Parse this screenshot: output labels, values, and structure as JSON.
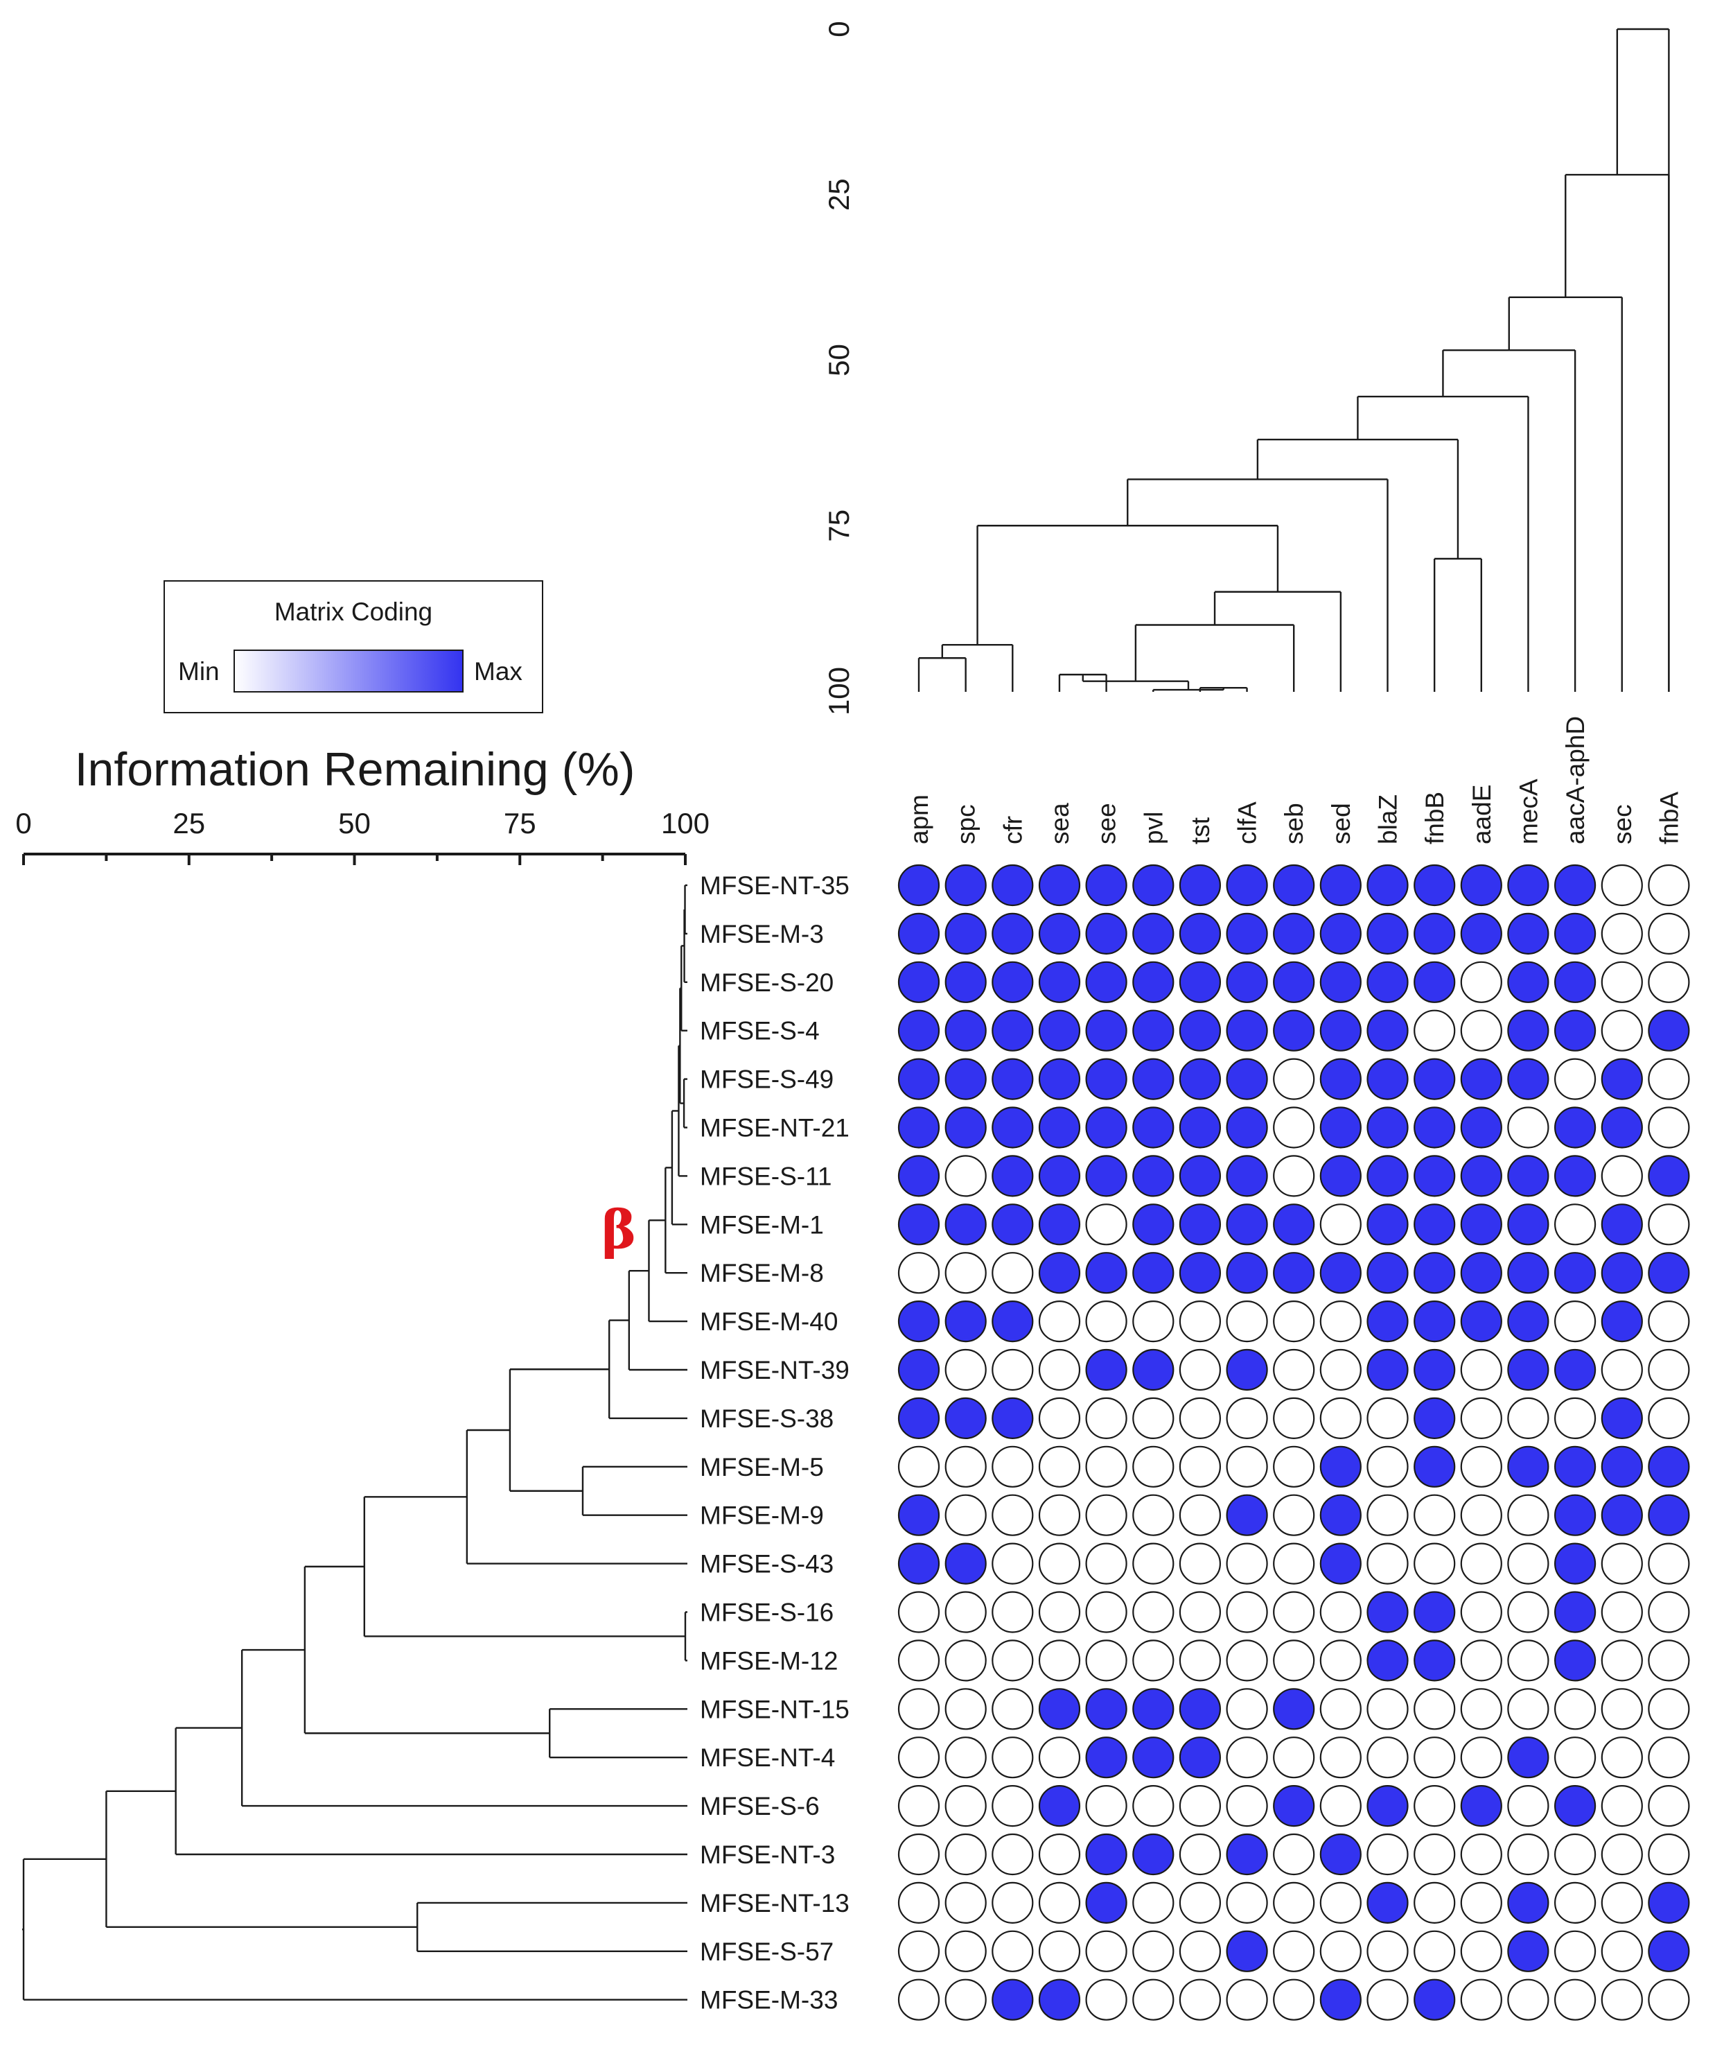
{
  "chart_data": {
    "type": "heatmap",
    "title": "",
    "rows": [
      "MFSE-NT-35",
      "MFSE-M-3",
      "MFSE-S-20",
      "MFSE-S-4",
      "MFSE-S-49",
      "MFSE-NT-21",
      "MFSE-S-11",
      "MFSE-M-1",
      "MFSE-M-8",
      "MFSE-M-40",
      "MFSE-NT-39",
      "MFSE-S-38",
      "MFSE-M-5",
      "MFSE-M-9",
      "MFSE-S-43",
      "MFSE-S-16",
      "MFSE-M-12",
      "MFSE-NT-15",
      "MFSE-NT-4",
      "MFSE-S-6",
      "MFSE-NT-3",
      "MFSE-NT-13",
      "MFSE-S-57",
      "MFSE-M-33"
    ],
    "columns": [
      "apm",
      "spc",
      "cfr",
      "sea",
      "see",
      "pvl",
      "tst",
      "clfA",
      "seb",
      "sed",
      "blaZ",
      "fnbB",
      "aadE",
      "mecA",
      "aacA-aphD",
      "sec",
      "fnbA"
    ],
    "matrix": [
      [
        1,
        1,
        1,
        1,
        1,
        1,
        1,
        1,
        1,
        1,
        1,
        1,
        1,
        1,
        1,
        0,
        0
      ],
      [
        1,
        1,
        1,
        1,
        1,
        1,
        1,
        1,
        1,
        1,
        1,
        1,
        1,
        1,
        1,
        0,
        0
      ],
      [
        1,
        1,
        1,
        1,
        1,
        1,
        1,
        1,
        1,
        1,
        1,
        1,
        0,
        1,
        1,
        0,
        0
      ],
      [
        1,
        1,
        1,
        1,
        1,
        1,
        1,
        1,
        1,
        1,
        1,
        0,
        0,
        1,
        1,
        0,
        1
      ],
      [
        1,
        1,
        1,
        1,
        1,
        1,
        1,
        1,
        0,
        1,
        1,
        1,
        1,
        1,
        0,
        1,
        0
      ],
      [
        1,
        1,
        1,
        1,
        1,
        1,
        1,
        1,
        0,
        1,
        1,
        1,
        1,
        0,
        1,
        1,
        0
      ],
      [
        1,
        0,
        1,
        1,
        1,
        1,
        1,
        1,
        0,
        1,
        1,
        1,
        1,
        1,
        1,
        0,
        1
      ],
      [
        1,
        1,
        1,
        1,
        0,
        1,
        1,
        1,
        1,
        0,
        1,
        1,
        1,
        1,
        0,
        1,
        0
      ],
      [
        0,
        0,
        0,
        1,
        1,
        1,
        1,
        1,
        1,
        1,
        1,
        1,
        1,
        1,
        1,
        1,
        1
      ],
      [
        1,
        1,
        1,
        0,
        0,
        0,
        0,
        0,
        0,
        0,
        1,
        1,
        1,
        1,
        0,
        1,
        0
      ],
      [
        1,
        0,
        0,
        0,
        1,
        1,
        0,
        1,
        0,
        0,
        1,
        1,
        0,
        1,
        1,
        0,
        0
      ],
      [
        1,
        1,
        1,
        0,
        0,
        0,
        0,
        0,
        0,
        0,
        0,
        1,
        0,
        0,
        0,
        1,
        0
      ],
      [
        0,
        0,
        0,
        0,
        0,
        0,
        0,
        0,
        0,
        1,
        0,
        1,
        0,
        1,
        1,
        1,
        1
      ],
      [
        1,
        0,
        0,
        0,
        0,
        0,
        0,
        1,
        0,
        1,
        0,
        0,
        0,
        0,
        1,
        1,
        1
      ],
      [
        1,
        1,
        0,
        0,
        0,
        0,
        0,
        0,
        0,
        1,
        0,
        0,
        0,
        0,
        1,
        0,
        0
      ],
      [
        0,
        0,
        0,
        0,
        0,
        0,
        0,
        0,
        0,
        0,
        1,
        1,
        0,
        0,
        1,
        0,
        0
      ],
      [
        0,
        0,
        0,
        0,
        0,
        0,
        0,
        0,
        0,
        0,
        1,
        1,
        0,
        0,
        1,
        0,
        0
      ],
      [
        0,
        0,
        0,
        1,
        1,
        1,
        1,
        0,
        1,
        0,
        0,
        0,
        0,
        0,
        0,
        0,
        0
      ],
      [
        0,
        0,
        0,
        0,
        1,
        1,
        1,
        0,
        0,
        0,
        0,
        0,
        0,
        1,
        0,
        0,
        0
      ],
      [
        0,
        0,
        0,
        1,
        0,
        0,
        0,
        0,
        1,
        0,
        1,
        0,
        1,
        0,
        1,
        0,
        0
      ],
      [
        0,
        0,
        0,
        0,
        1,
        1,
        0,
        1,
        0,
        1,
        0,
        0,
        0,
        0,
        0,
        0,
        0
      ],
      [
        0,
        0,
        0,
        0,
        1,
        0,
        0,
        0,
        0,
        0,
        1,
        0,
        0,
        1,
        0,
        0,
        1
      ],
      [
        0,
        0,
        0,
        0,
        0,
        0,
        0,
        1,
        0,
        0,
        0,
        0,
        0,
        1,
        0,
        0,
        1
      ],
      [
        0,
        0,
        1,
        1,
        0,
        0,
        0,
        0,
        0,
        1,
        0,
        1,
        0,
        0,
        0,
        0,
        0
      ]
    ],
    "row_dendrogram": {
      "axis_title": "Information Remaining (%)",
      "axis_range": [
        0,
        100
      ],
      "ticks": [
        0,
        25,
        50,
        75,
        100
      ],
      "tick_labels": [
        "0",
        "25",
        "50",
        "75",
        "100"
      ],
      "clade_marker": "β",
      "merges": [
        {
          "children": [
            "MFSE-NT-35",
            "MFSE-M-3"
          ],
          "value": 99.95
        },
        {
          "children": [
            "MFSE-S-49",
            "MFSE-NT-21"
          ],
          "value": 99.8
        },
        {
          "children": [
            0,
            "MFSE-S-20"
          ],
          "value": 99.85
        },
        {
          "children": [
            2,
            "MFSE-S-4"
          ],
          "value": 99.4
        },
        {
          "children": [
            3,
            1
          ],
          "value": 99.2
        },
        {
          "children": [
            4,
            "MFSE-S-11"
          ],
          "value": 99.0
        },
        {
          "children": [
            5,
            "MFSE-M-1"
          ],
          "value": 98.0
        },
        {
          "children": [
            6,
            "MFSE-M-8"
          ],
          "value": 97.0
        },
        {
          "children": [
            7,
            "MFSE-M-40"
          ],
          "value": 94.5
        },
        {
          "children": [
            8,
            "MFSE-NT-39"
          ],
          "value": 91.5
        },
        {
          "children": [
            9,
            "MFSE-S-38"
          ],
          "value": 88.5
        },
        {
          "children": [
            "MFSE-M-5",
            "MFSE-M-9"
          ],
          "value": 84.5
        },
        {
          "children": [
            10,
            11
          ],
          "value": 73.5
        },
        {
          "children": [
            12,
            "MFSE-S-43"
          ],
          "value": 67.0
        },
        {
          "children": [
            "MFSE-S-16",
            "MFSE-M-12"
          ],
          "value": 100.0
        },
        {
          "children": [
            13,
            14
          ],
          "value": 51.5
        },
        {
          "children": [
            "MFSE-NT-15",
            "MFSE-NT-4"
          ],
          "value": 79.5
        },
        {
          "children": [
            15,
            16
          ],
          "value": 42.5
        },
        {
          "children": [
            17,
            "MFSE-S-6"
          ],
          "value": 33.0
        },
        {
          "children": [
            18,
            "MFSE-NT-3"
          ],
          "value": 23.0
        },
        {
          "children": [
            "MFSE-NT-13",
            "MFSE-S-57"
          ],
          "value": 59.5
        },
        {
          "children": [
            19,
            20
          ],
          "value": 12.5
        },
        {
          "children": [
            21,
            "MFSE-M-33"
          ],
          "value": 0.0
        }
      ]
    },
    "column_dendrogram": {
      "axis_range": [
        0,
        100
      ],
      "ticks": [
        0,
        25,
        50,
        75,
        100
      ],
      "tick_labels": [
        "0",
        "25",
        "50",
        "75",
        "100"
      ],
      "merges": [
        {
          "children": [
            "apm",
            "spc"
          ],
          "value": 95.0
        },
        {
          "children": [
            0,
            "cfr"
          ],
          "value": 93.0
        },
        {
          "children": [
            "tst",
            "clfA"
          ],
          "value": 99.5
        },
        {
          "children": [
            "pvl",
            2
          ],
          "value": 99.8
        },
        {
          "children": [
            "sea",
            "see"
          ],
          "value": 97.5
        },
        {
          "children": [
            4,
            3
          ],
          "value": 98.5
        },
        {
          "children": [
            5,
            "seb"
          ],
          "value": 90.0
        },
        {
          "children": [
            6,
            "sed"
          ],
          "value": 85.0
        },
        {
          "children": [
            1,
            7
          ],
          "value": 75.0
        },
        {
          "children": [
            8,
            "blaZ"
          ],
          "value": 68.0
        },
        {
          "children": [
            "fnbB",
            "aadE"
          ],
          "value": 80.0
        },
        {
          "children": [
            9,
            10
          ],
          "value": 62.0
        },
        {
          "children": [
            11,
            "mecA"
          ],
          "value": 55.5
        },
        {
          "children": [
            12,
            "aacA-aphD"
          ],
          "value": 48.5
        },
        {
          "children": [
            13,
            "sec"
          ],
          "value": 40.5
        },
        {
          "children": [
            14,
            "fnbA"
          ],
          "value": 22.0
        },
        {
          "children": [
            15,
            "fnbA_root"
          ],
          "value": 0.0
        }
      ]
    },
    "legend": {
      "title": "Matrix Coding",
      "min_label": "Min",
      "max_label": "Max",
      "min_color": "#ffffff",
      "max_color": "#3333f0",
      "placement": "left"
    }
  },
  "colors": {
    "present": "#3333f0",
    "absent": "#ffffff",
    "line": "#1a1a1a",
    "marker": "#e0161c"
  }
}
